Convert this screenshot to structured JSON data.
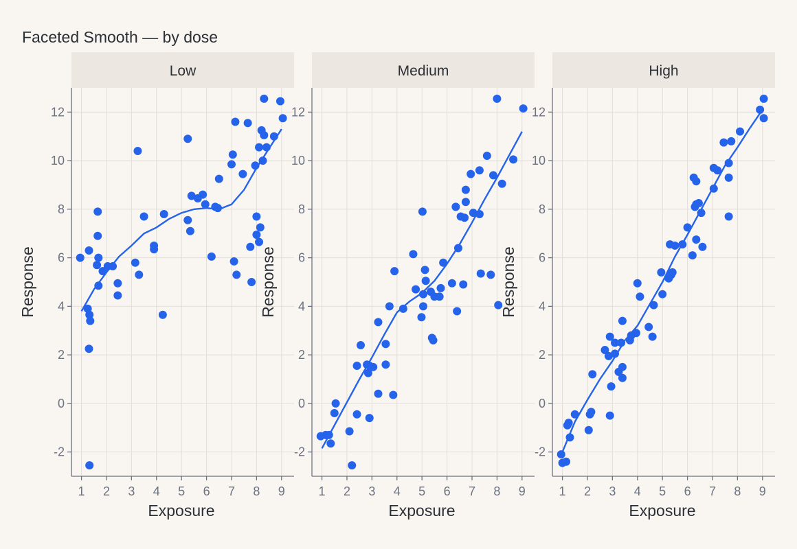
{
  "title": "Faceted Smooth — by dose",
  "colors": {
    "point": "#2563eb",
    "smooth": "#2563eb",
    "strip": "#ece8e1",
    "background": "#f9f6f2"
  },
  "chart_data": {
    "type": "scatter",
    "title": "Faceted Smooth — by dose",
    "xlabel": "Exposure",
    "ylabel": "Response",
    "xlim": [
      0.6,
      9.5
    ],
    "ylim": [
      -3.0,
      13.0
    ],
    "x_ticks": [
      "1",
      "2",
      "3",
      "4",
      "5",
      "6",
      "7",
      "8",
      "9"
    ],
    "y_ticks": [
      "-2",
      "0",
      "2",
      "4",
      "6",
      "8",
      "10",
      "12"
    ],
    "grid": true,
    "legend": "none",
    "facet_by": "dose",
    "panels": [
      {
        "facet": "Low",
        "points": [
          [
            0.95,
            6.0
          ],
          [
            1.25,
            3.9
          ],
          [
            1.3,
            6.3
          ],
          [
            1.32,
            3.65
          ],
          [
            1.35,
            3.4
          ],
          [
            1.3,
            2.25
          ],
          [
            1.32,
            -2.55
          ],
          [
            1.65,
            7.9
          ],
          [
            1.65,
            6.9
          ],
          [
            1.68,
            6.0
          ],
          [
            1.62,
            5.7
          ],
          [
            1.68,
            4.85
          ],
          [
            1.85,
            5.45
          ],
          [
            2.05,
            5.65
          ],
          [
            2.25,
            5.65
          ],
          [
            2.45,
            4.95
          ],
          [
            2.45,
            4.45
          ],
          [
            3.15,
            5.8
          ],
          [
            3.25,
            10.4
          ],
          [
            3.3,
            5.3
          ],
          [
            3.5,
            7.7
          ],
          [
            3.9,
            6.5
          ],
          [
            3.9,
            6.35
          ],
          [
            4.3,
            7.8
          ],
          [
            4.25,
            3.65
          ],
          [
            5.25,
            10.9
          ],
          [
            5.25,
            7.55
          ],
          [
            5.35,
            7.1
          ],
          [
            5.4,
            8.55
          ],
          [
            5.65,
            8.45
          ],
          [
            5.85,
            8.6
          ],
          [
            5.95,
            8.2
          ],
          [
            6.2,
            6.05
          ],
          [
            6.35,
            8.1
          ],
          [
            6.45,
            8.05
          ],
          [
            6.5,
            9.25
          ],
          [
            7.0,
            9.85
          ],
          [
            7.05,
            10.25
          ],
          [
            7.15,
            11.6
          ],
          [
            7.1,
            5.85
          ],
          [
            7.2,
            5.3
          ],
          [
            7.45,
            9.45
          ],
          [
            7.65,
            11.55
          ],
          [
            7.75,
            6.45
          ],
          [
            7.8,
            5.0
          ],
          [
            7.95,
            9.8
          ],
          [
            8.0,
            6.95
          ],
          [
            8.0,
            7.7
          ],
          [
            8.1,
            10.55
          ],
          [
            8.1,
            6.65
          ],
          [
            8.15,
            7.25
          ],
          [
            8.2,
            11.25
          ],
          [
            8.25,
            10.0
          ],
          [
            8.3,
            11.05
          ],
          [
            8.3,
            12.55
          ],
          [
            8.4,
            10.55
          ],
          [
            8.7,
            11.0
          ],
          [
            8.95,
            12.45
          ],
          [
            9.05,
            11.75
          ]
        ],
        "smooth": [
          [
            1.0,
            3.8
          ],
          [
            1.5,
            4.7
          ],
          [
            2.0,
            5.4
          ],
          [
            2.5,
            6.05
          ],
          [
            3.0,
            6.5
          ],
          [
            3.5,
            7.0
          ],
          [
            4.0,
            7.25
          ],
          [
            4.5,
            7.6
          ],
          [
            5.0,
            7.85
          ],
          [
            5.5,
            8.0
          ],
          [
            6.0,
            8.05
          ],
          [
            6.5,
            8.0
          ],
          [
            7.0,
            8.2
          ],
          [
            7.5,
            8.8
          ],
          [
            8.0,
            9.7
          ],
          [
            8.5,
            10.5
          ],
          [
            9.0,
            11.3
          ]
        ]
      },
      {
        "facet": "Medium",
        "points": [
          [
            0.95,
            -1.35
          ],
          [
            1.15,
            -1.3
          ],
          [
            1.28,
            -1.3
          ],
          [
            1.35,
            -1.65
          ],
          [
            1.5,
            -0.4
          ],
          [
            1.55,
            0.0
          ],
          [
            2.1,
            -1.15
          ],
          [
            2.2,
            -2.55
          ],
          [
            2.4,
            -0.45
          ],
          [
            2.4,
            1.55
          ],
          [
            2.55,
            2.4
          ],
          [
            2.8,
            1.6
          ],
          [
            2.85,
            1.25
          ],
          [
            2.9,
            -0.6
          ],
          [
            2.9,
            1.55
          ],
          [
            3.05,
            1.5
          ],
          [
            3.25,
            3.35
          ],
          [
            3.25,
            0.4
          ],
          [
            3.55,
            2.45
          ],
          [
            3.55,
            1.6
          ],
          [
            3.7,
            4.0
          ],
          [
            3.85,
            0.35
          ],
          [
            3.9,
            5.45
          ],
          [
            4.25,
            3.9
          ],
          [
            4.65,
            6.15
          ],
          [
            4.75,
            4.7
          ],
          [
            4.98,
            3.55
          ],
          [
            5.05,
            4.0
          ],
          [
            5.05,
            4.5
          ],
          [
            5.02,
            7.9
          ],
          [
            5.12,
            5.5
          ],
          [
            5.15,
            5.05
          ],
          [
            5.35,
            4.6
          ],
          [
            5.4,
            2.7
          ],
          [
            5.45,
            2.6
          ],
          [
            5.5,
            4.4
          ],
          [
            5.7,
            4.4
          ],
          [
            5.75,
            4.75
          ],
          [
            5.85,
            5.8
          ],
          [
            6.2,
            4.95
          ],
          [
            6.35,
            8.1
          ],
          [
            6.4,
            3.8
          ],
          [
            6.45,
            6.4
          ],
          [
            6.55,
            7.7
          ],
          [
            6.65,
            4.9
          ],
          [
            6.7,
            7.65
          ],
          [
            6.75,
            8.3
          ],
          [
            6.75,
            8.8
          ],
          [
            6.95,
            9.45
          ],
          [
            7.05,
            7.85
          ],
          [
            7.3,
            7.8
          ],
          [
            7.3,
            9.6
          ],
          [
            7.35,
            5.35
          ],
          [
            7.6,
            10.2
          ],
          [
            7.75,
            5.3
          ],
          [
            7.85,
            9.4
          ],
          [
            8.0,
            12.55
          ],
          [
            8.05,
            4.05
          ],
          [
            8.2,
            9.05
          ],
          [
            8.65,
            10.05
          ],
          [
            9.05,
            12.15
          ]
        ],
        "smooth": [
          [
            1.0,
            -1.85
          ],
          [
            1.5,
            -0.9
          ],
          [
            2.0,
            0.05
          ],
          [
            2.5,
            1.0
          ],
          [
            3.0,
            1.9
          ],
          [
            3.5,
            2.85
          ],
          [
            4.0,
            3.75
          ],
          [
            4.5,
            4.2
          ],
          [
            5.0,
            4.55
          ],
          [
            5.5,
            5.05
          ],
          [
            6.0,
            5.75
          ],
          [
            6.5,
            6.55
          ],
          [
            7.0,
            7.45
          ],
          [
            7.5,
            8.4
          ],
          [
            8.0,
            9.3
          ],
          [
            8.5,
            10.25
          ],
          [
            9.0,
            11.2
          ]
        ]
      },
      {
        "facet": "High",
        "points": [
          [
            0.95,
            -2.1
          ],
          [
            1.0,
            -2.45
          ],
          [
            1.15,
            -2.4
          ],
          [
            1.2,
            -0.9
          ],
          [
            1.25,
            -0.8
          ],
          [
            1.3,
            -1.4
          ],
          [
            1.5,
            -0.45
          ],
          [
            2.05,
            -1.1
          ],
          [
            2.1,
            -0.45
          ],
          [
            2.15,
            -0.35
          ],
          [
            2.2,
            1.2
          ],
          [
            2.7,
            2.2
          ],
          [
            2.85,
            1.95
          ],
          [
            2.9,
            2.75
          ],
          [
            2.9,
            -0.5
          ],
          [
            2.95,
            0.7
          ],
          [
            3.1,
            2.05
          ],
          [
            3.1,
            2.5
          ],
          [
            3.25,
            1.3
          ],
          [
            3.35,
            2.5
          ],
          [
            3.4,
            1.05
          ],
          [
            3.4,
            1.5
          ],
          [
            3.4,
            3.4
          ],
          [
            3.7,
            2.6
          ],
          [
            3.75,
            2.8
          ],
          [
            3.95,
            2.9
          ],
          [
            4.0,
            4.95
          ],
          [
            4.1,
            4.4
          ],
          [
            4.45,
            3.15
          ],
          [
            4.6,
            2.75
          ],
          [
            4.65,
            4.05
          ],
          [
            4.95,
            5.4
          ],
          [
            5.0,
            4.5
          ],
          [
            5.25,
            5.15
          ],
          [
            5.3,
            6.55
          ],
          [
            5.35,
            5.3
          ],
          [
            5.4,
            5.4
          ],
          [
            5.5,
            6.5
          ],
          [
            5.8,
            6.55
          ],
          [
            6.0,
            7.25
          ],
          [
            6.2,
            6.1
          ],
          [
            6.25,
            9.3
          ],
          [
            6.3,
            8.1
          ],
          [
            6.35,
            9.15
          ],
          [
            6.35,
            8.2
          ],
          [
            6.35,
            6.75
          ],
          [
            6.45,
            8.25
          ],
          [
            6.55,
            7.85
          ],
          [
            6.6,
            6.45
          ],
          [
            7.05,
            9.7
          ],
          [
            7.05,
            8.85
          ],
          [
            7.2,
            9.6
          ],
          [
            7.45,
            10.75
          ],
          [
            7.65,
            9.3
          ],
          [
            7.65,
            9.9
          ],
          [
            7.65,
            7.7
          ],
          [
            7.75,
            10.8
          ],
          [
            8.1,
            11.2
          ],
          [
            8.9,
            12.1
          ],
          [
            9.05,
            12.55
          ],
          [
            9.05,
            11.75
          ]
        ],
        "smooth": [
          [
            1.0,
            -2.0
          ],
          [
            1.5,
            -0.75
          ],
          [
            2.0,
            0.15
          ],
          [
            2.5,
            1.0
          ],
          [
            3.0,
            1.75
          ],
          [
            3.5,
            2.6
          ],
          [
            4.0,
            3.2
          ],
          [
            4.5,
            4.1
          ],
          [
            5.0,
            5.0
          ],
          [
            5.5,
            6.05
          ],
          [
            6.0,
            6.95
          ],
          [
            6.5,
            7.9
          ],
          [
            7.0,
            8.85
          ],
          [
            7.5,
            9.8
          ],
          [
            8.0,
            10.55
          ],
          [
            8.5,
            11.35
          ],
          [
            9.0,
            12.1
          ]
        ]
      }
    ]
  }
}
